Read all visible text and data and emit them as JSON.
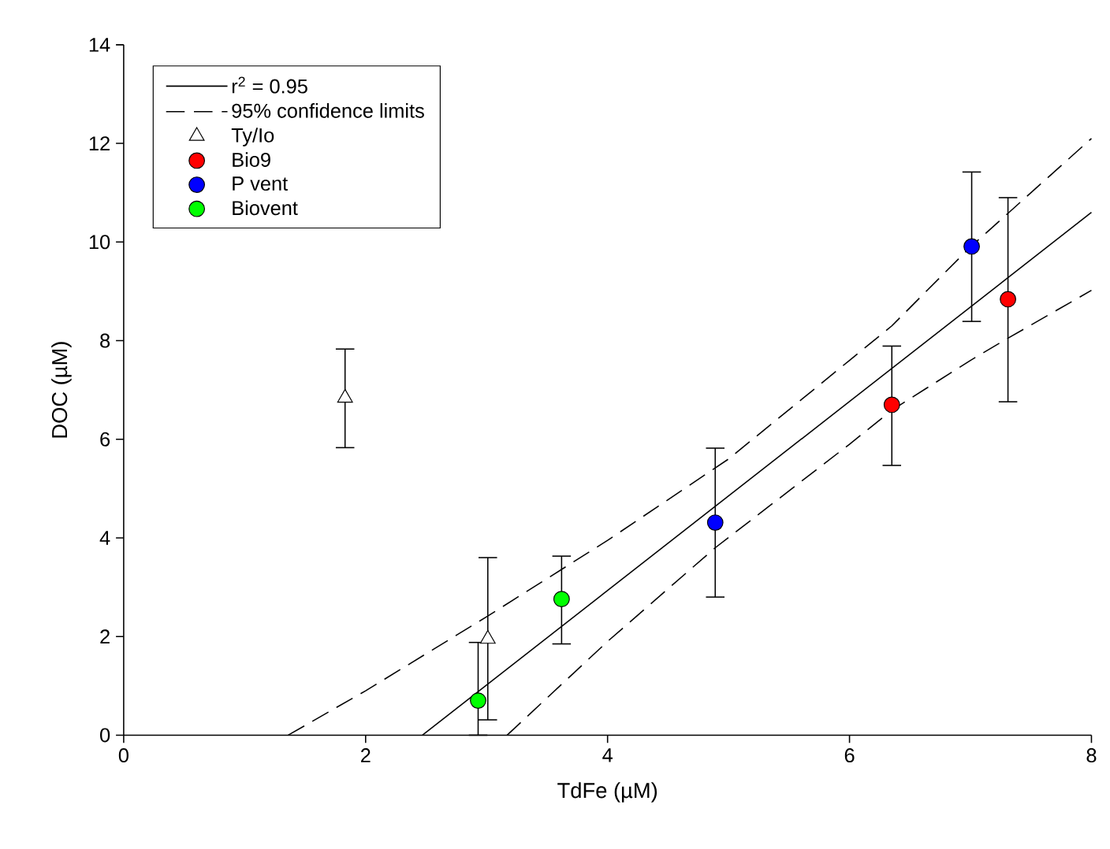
{
  "chart_data": {
    "type": "scatter",
    "xlabel": "TdFe (µM)",
    "ylabel": "DOC (µM)",
    "xlim": [
      0,
      8
    ],
    "ylim": [
      0,
      14
    ],
    "xticks": [
      0,
      2,
      4,
      6,
      8
    ],
    "yticks": [
      0,
      2,
      4,
      6,
      8,
      10,
      12,
      14
    ],
    "grid": false,
    "legend": "top left",
    "series": [
      {
        "name": "r$^{2}$ = 0.95",
        "type": "line",
        "line_style": "solid",
        "marker": "none",
        "color": "#000000",
        "x": [
          2.47,
          8
        ],
        "values": [
          0,
          10.6
        ]
      },
      {
        "name": "95% confidence limits",
        "type": "line",
        "line_style": "dashed",
        "marker": "none",
        "color": "#000000",
        "x": [
          1.36,
          2,
          3,
          4,
          5,
          6,
          6.35,
          7,
          8
        ],
        "values": [
          0,
          0.9,
          2.4,
          3.95,
          5.6,
          7.6,
          8.3,
          9.9,
          12.1
        ]
      },
      {
        "type": "line",
        "line_style": "dashed",
        "marker": "none",
        "color": "#000000",
        "x": [
          3.17,
          4,
          4.89,
          6,
          6.35,
          7,
          7.31,
          8
        ],
        "values": [
          0,
          1.9,
          3.8,
          5.9,
          6.59,
          7.6,
          8.05,
          9.02
        ]
      },
      {
        "name": "Ty/Io",
        "marker": "triangle",
        "color": "#ffffff",
        "x": [
          1.83,
          3.01
        ],
        "values": [
          6.84,
          1.95
        ],
        "errors": [
          [
            5.83,
            7.83
          ],
          [
            0.31,
            3.6
          ]
        ]
      },
      {
        "name": "Bio9",
        "marker": "circle",
        "color": "#ff0000",
        "x": [
          6.35,
          7.31
        ],
        "values": [
          6.7,
          8.84
        ],
        "errors": [
          [
            5.47,
            7.89
          ],
          [
            6.76,
            10.9
          ]
        ]
      },
      {
        "name": "P vent",
        "marker": "circle",
        "color": "#0000ff",
        "x": [
          4.89,
          7.01
        ],
        "values": [
          4.31,
          9.91
        ],
        "errors": [
          [
            2.8,
            5.82
          ],
          [
            8.39,
            11.42
          ]
        ]
      },
      {
        "name": "Biovent",
        "marker": "circle",
        "color": "#00ff00",
        "x": [
          2.93,
          3.62
        ],
        "values": [
          0.7,
          2.76
        ],
        "errors": [
          [
            0,
            1.88
          ],
          [
            1.85,
            3.63
          ]
        ]
      }
    ]
  }
}
